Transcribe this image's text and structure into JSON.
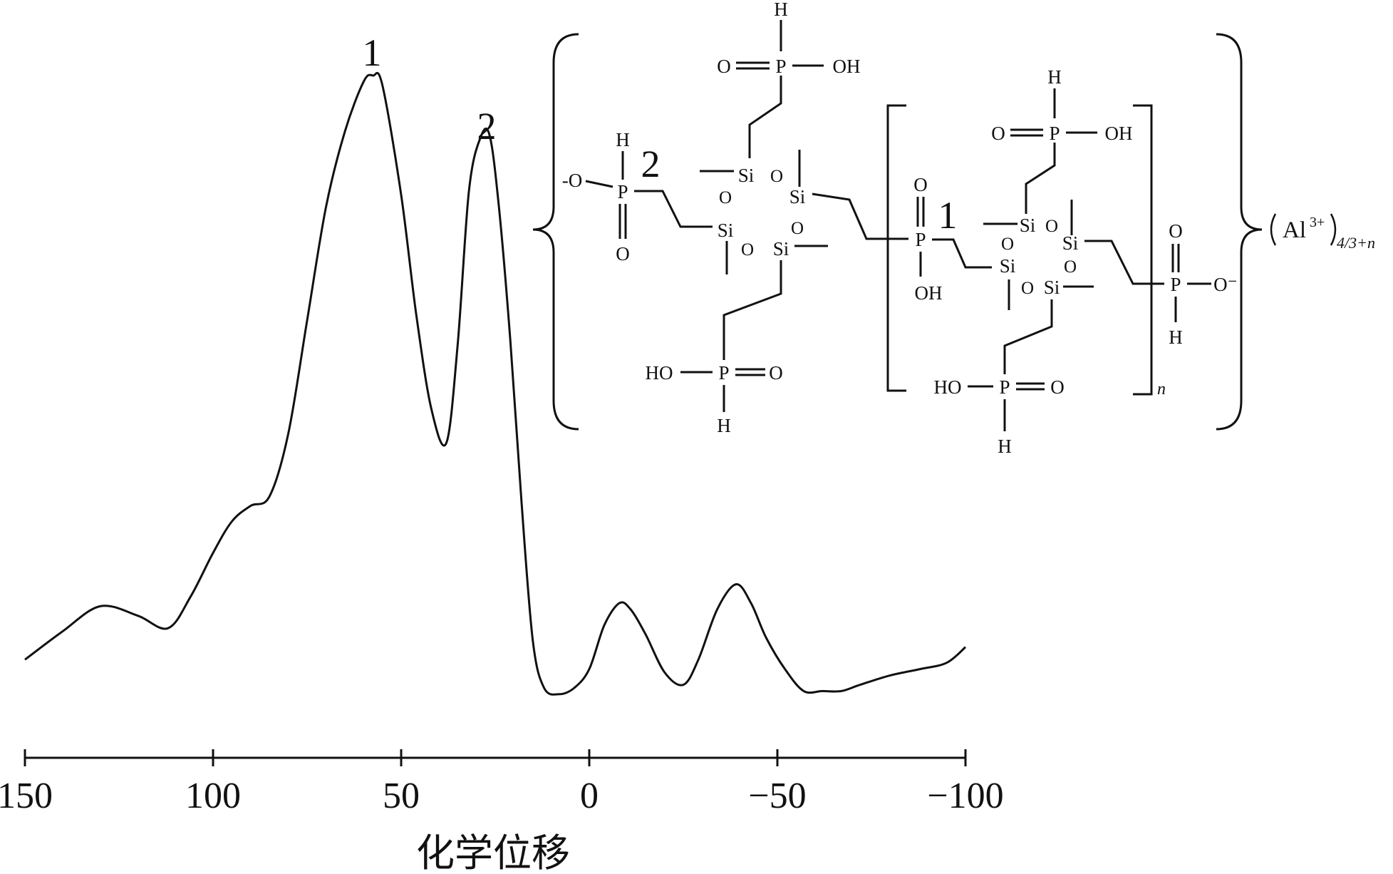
{
  "chart_data": {
    "type": "line",
    "title": "",
    "xlabel": "化学位移",
    "ylabel": "",
    "xlim": [
      150,
      -100
    ],
    "x_reversed": true,
    "x_ticks": [
      150,
      100,
      50,
      0,
      -50,
      -100
    ],
    "x_tick_labels": [
      "150",
      "100",
      "50",
      "0",
      "−50",
      "−100"
    ],
    "y_axis_shown": false,
    "grid": false,
    "series": [
      {
        "x": [
          150,
          140,
          130,
          120,
          112,
          106,
          100,
          95,
          90,
          85,
          80,
          75,
          70,
          65,
          60,
          57.5,
          55,
          50,
          46,
          42,
          38,
          35,
          32,
          29,
          26.5,
          24,
          21,
          18,
          15,
          12,
          8,
          4,
          0,
          -4,
          -8,
          -11,
          -15,
          -20,
          -25,
          -29,
          -34,
          -39,
          -43,
          -47,
          -52,
          -57,
          -62,
          -67,
          -72,
          -80,
          -88,
          -95,
          -100
        ],
        "y": [
          7.0,
          11.5,
          15.5,
          14.0,
          12.0,
          17.0,
          24.0,
          29.0,
          31.5,
          33.0,
          43.0,
          61.0,
          79.0,
          91.0,
          99.0,
          100.0,
          98.5,
          81.0,
          62.0,
          47.0,
          41.5,
          57.0,
          81.5,
          90.0,
          90.5,
          79.0,
          58.0,
          32.0,
          10.0,
          2.5,
          1.5,
          2.5,
          5.5,
          12.5,
          16.0,
          15.0,
          11.0,
          5.0,
          3.0,
          7.0,
          15.0,
          19.0,
          16.0,
          10.5,
          5.5,
          2.0,
          2.0,
          2.0,
          3.0,
          4.5,
          5.5,
          6.5,
          9.0
        ]
      }
    ],
    "annotations": [
      {
        "label": "1",
        "x": 57.5,
        "y": 100
      },
      {
        "label": "2",
        "x": 26.5,
        "y": 90.5
      }
    ]
  },
  "structure": {
    "peak_marker_1": "1",
    "peak_marker_2": "2",
    "atoms": {
      "h": "H",
      "o": "O",
      "oh": "OH",
      "ho": "HO",
      "p": "P",
      "si": "Si",
      "o_minus_left": "-O",
      "o_minus_right": "O⁻"
    },
    "repeat_subscript": "n",
    "counter_ion": "Al",
    "counter_ion_charge": "3+",
    "counter_ion_subscript": "4/3+n"
  }
}
